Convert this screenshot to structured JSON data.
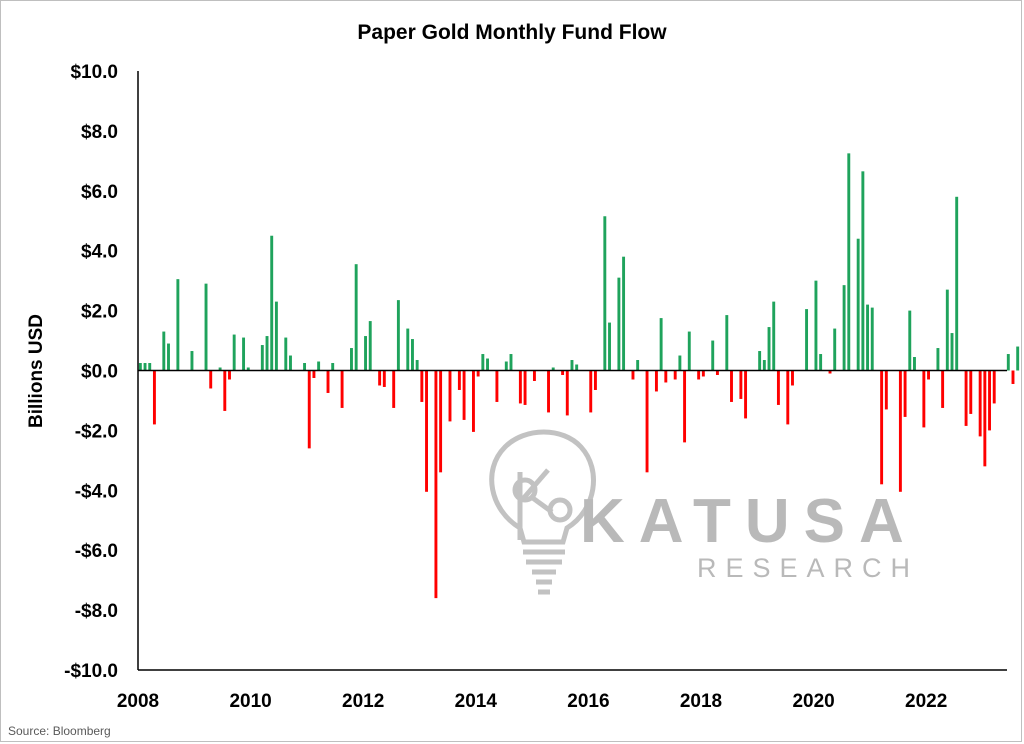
{
  "chart_data": {
    "type": "bar",
    "title": "Paper Gold Monthly Fund Flow",
    "ylabel": "Billions USD",
    "xlabel": "",
    "ylim": [
      -10,
      10
    ],
    "yticks": [
      "$10.0",
      "$8.0",
      "$6.0",
      "$4.0",
      "$2.0",
      "$0.0",
      "-$2.0",
      "-$4.0",
      "-$6.0",
      "-$8.0",
      "-$10.0"
    ],
    "xticks": [
      "2008",
      "2010",
      "2012",
      "2014",
      "2016",
      "2018",
      "2020",
      "2022"
    ],
    "grid": false,
    "legend": "none",
    "positive_color": "#1fa35c",
    "negative_color": "#ff0000",
    "x_start": "2008-01",
    "series": [
      {
        "values": [
          0.25,
          0.25,
          0.25,
          -1.8,
          0,
          1.3,
          0.9,
          0,
          3.05,
          0,
          0,
          0.65,
          0,
          0,
          2.9,
          -0.6,
          0,
          0.1,
          -1.35,
          -0.3,
          1.2,
          0,
          1.1,
          0.1,
          0,
          0,
          0.85,
          1.15,
          4.5,
          2.3,
          0,
          1.1,
          0.5,
          0,
          0,
          0.25,
          -2.6,
          -0.25,
          0.3,
          0,
          -0.75,
          0.25,
          0,
          -1.25,
          0,
          0.75,
          3.55,
          0,
          1.15,
          1.65,
          0,
          -0.5,
          -0.55,
          0,
          -1.25,
          2.35,
          0,
          1.4,
          1.05,
          0.35,
          -1.05,
          -4.05,
          0,
          -7.6,
          -3.4,
          0,
          -1.7,
          0,
          -0.65,
          -1.65,
          0,
          -2.05,
          -0.2,
          0.55,
          0.4,
          0,
          -1.05,
          0,
          0.3,
          0.55,
          0,
          -1.1,
          -1.15,
          0,
          -0.35,
          0,
          0,
          -1.4,
          0.1,
          0,
          -0.15,
          -1.5,
          0.35,
          0.2,
          0,
          0,
          -1.4,
          -0.65,
          0,
          5.15,
          1.6,
          0,
          3.1,
          3.8,
          0,
          -0.3,
          0.35,
          0,
          -3.4,
          0,
          -0.7,
          1.75,
          -0.4,
          0,
          -0.3,
          0.5,
          -2.4,
          1.3,
          0,
          -0.3,
          -0.2,
          0,
          1.0,
          -0.15,
          0,
          1.85,
          -1.05,
          0,
          -0.95,
          -1.6,
          0,
          0,
          0.65,
          0.35,
          1.45,
          2.3,
          -1.15,
          0,
          -1.8,
          -0.5,
          0,
          0,
          2.05,
          0,
          3.0,
          0.55,
          0,
          -0.1,
          1.4,
          0,
          2.85,
          7.25,
          0,
          4.4,
          6.65,
          2.2,
          2.1,
          0,
          -3.8,
          -1.3,
          0,
          0,
          -4.05,
          -1.55,
          2.0,
          0.45,
          0,
          -1.9,
          -0.3,
          0,
          0.75,
          -1.25,
          2.7,
          1.25,
          5.8,
          0,
          -1.85,
          -1.45,
          0,
          -2.2,
          -3.2,
          -2.0,
          -1.1,
          0,
          0,
          0.55,
          -0.45,
          0.8
        ]
      }
    ]
  },
  "watermark": {
    "brand": "KATUSA",
    "sub": "RESEARCH",
    "icon": "lightbulb-k-icon"
  },
  "source": "Source: Bloomberg"
}
